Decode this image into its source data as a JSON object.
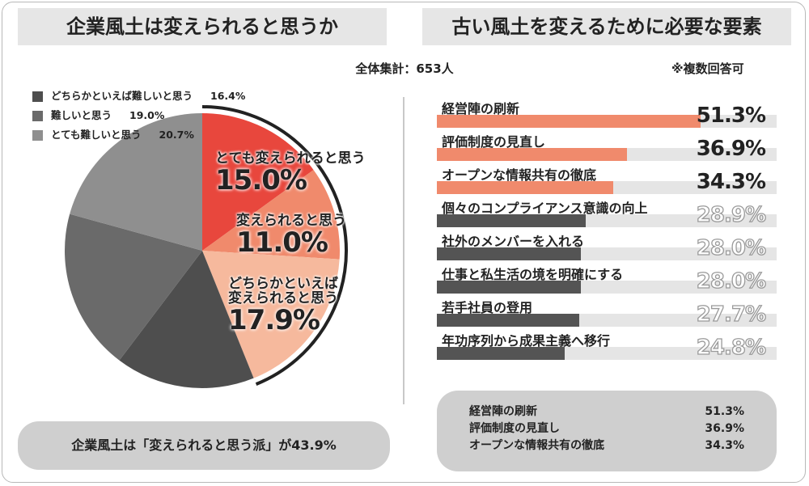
{
  "left_title": "企業風土は変えられると思うか",
  "right_title": "古い風土を変えるために必要な要素",
  "total_label": "全体集計：653人",
  "note": "※複数回答可",
  "bottom_note": "企業風土は「変えられると思う派」が43.9%",
  "colors": {
    "easy": "#e8473d",
    "can": "#f08a6c",
    "rather_can": "#f6b99d",
    "rather_hard": "#8f8f8f",
    "hard": "#6a6a6a",
    "very_hard": "#4e4e4e",
    "bar_top": "#f08a6c",
    "bar_rest": "#545454"
  },
  "chart_data": [
    {
      "type": "pie",
      "slices": [
        {
          "label": "とても変えられると思う",
          "value": 15.0,
          "display": "15.0%"
        },
        {
          "label": "変えられると思う",
          "value": 11.0,
          "display": "11.0%"
        },
        {
          "label": "どちらかといえば変えられると思う",
          "display": "17.9%",
          "value": 17.9
        },
        {
          "label": "どちらかといえば難しいと思う",
          "value": 16.4,
          "display": "16.4%"
        },
        {
          "label": "難しいと思う",
          "value": 19.0,
          "display": "19.0%"
        },
        {
          "label": "とても難しいと思う",
          "value": 20.7,
          "display": "20.7%"
        }
      ],
      "label_lines": {
        "easy": [
          "とても変えられると思う"
        ],
        "can": [
          "変えられると思う"
        ],
        "rather_can": [
          "どちらかといえば",
          "変えられると思う"
        ]
      }
    },
    {
      "type": "bar",
      "categories": [
        "経営陣の刷新",
        "評価制度の見直し",
        "オープンな情報共有の徹底",
        "個々のコンプライアンス意識の向上",
        "社外のメンバーを入れる",
        "仕事と私生活の境を明確にする",
        "若手社員の登用",
        "年功序列から成果主義へ移行"
      ],
      "values": [
        51.3,
        36.9,
        34.3,
        28.9,
        28.0,
        28.0,
        27.7,
        24.8
      ],
      "labels": [
        "51.3%",
        "36.9%",
        "34.3%",
        "28.9%",
        "28.0%",
        "28.0%",
        "27.7%",
        "24.8%"
      ]
    }
  ],
  "summary": [
    {
      "label": "経営陣の刷新",
      "value": "51.3%"
    },
    {
      "label": "評価制度の見直し",
      "value": "36.9%"
    },
    {
      "label": "オープンな情報共有の徹底",
      "value": "34.3%"
    }
  ]
}
